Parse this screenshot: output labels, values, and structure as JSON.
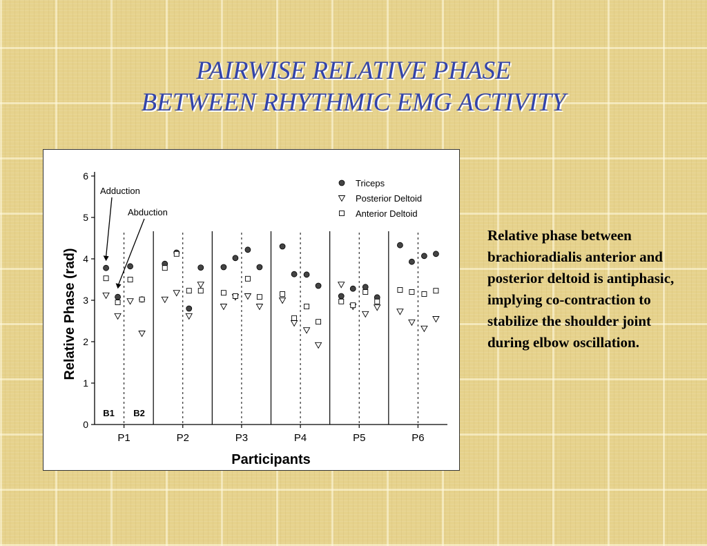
{
  "slide": {
    "title_line1": "PAIRWISE RELATIVE PHASE",
    "title_line2": "BETWEEN RHYTHMIC EMG ACTIVITY",
    "description": "Relative phase between brachioradialis anterior and posterior deltoid is antiphasic, implying co-contraction to stabilize the shoulder joint during elbow oscillation."
  },
  "colors": {
    "title": "#3344aa",
    "triceps_fill": "#444444",
    "background": "#e6d28c"
  },
  "chart_data": {
    "type": "scatter",
    "title": "",
    "xlabel": "Participants",
    "ylabel": "Relative Phase (rad)",
    "ylim": [
      0,
      6
    ],
    "yticks": [
      0,
      1,
      2,
      3,
      4,
      5,
      6
    ],
    "categories": [
      "P1",
      "P2",
      "P3",
      "P4",
      "P5",
      "P6"
    ],
    "subgroups": [
      "B1",
      "B2"
    ],
    "legend_position": "top-right",
    "annotations": [
      "Adduction",
      "Abduction"
    ],
    "series": [
      {
        "name": "Triceps",
        "marker": "filled-circle",
        "points": [
          {
            "participant": "P1",
            "block": 1,
            "values": [
              3.78,
              3.08
            ]
          },
          {
            "participant": "P1",
            "block": 2,
            "values": [
              3.82,
              3.02
            ]
          },
          {
            "participant": "P2",
            "block": 1,
            "values": [
              3.88,
              4.15
            ]
          },
          {
            "participant": "P2",
            "block": 2,
            "values": [
              2.8,
              3.79
            ]
          },
          {
            "participant": "P3",
            "block": 1,
            "values": [
              3.8,
              4.02
            ]
          },
          {
            "participant": "P3",
            "block": 2,
            "values": [
              4.22,
              3.8
            ]
          },
          {
            "participant": "P4",
            "block": 1,
            "values": [
              4.3,
              3.63
            ]
          },
          {
            "participant": "P4",
            "block": 2,
            "values": [
              3.62,
              3.35
            ]
          },
          {
            "participant": "P5",
            "block": 1,
            "values": [
              3.1,
              3.28
            ]
          },
          {
            "participant": "P5",
            "block": 2,
            "values": [
              3.32,
              3.07
            ]
          },
          {
            "participant": "P6",
            "block": 1,
            "values": [
              4.33,
              3.93
            ]
          },
          {
            "participant": "P6",
            "block": 2,
            "values": [
              4.07,
              4.12
            ]
          }
        ]
      },
      {
        "name": "Posterior Deltoid",
        "marker": "open-triangle-down",
        "points": [
          {
            "participant": "P1",
            "block": 1,
            "values": [
              3.12,
              2.62
            ]
          },
          {
            "participant": "P1",
            "block": 2,
            "values": [
              2.98,
              2.2
            ]
          },
          {
            "participant": "P2",
            "block": 1,
            "values": [
              3.02,
              3.18
            ]
          },
          {
            "participant": "P2",
            "block": 2,
            "values": [
              2.62,
              3.38
            ]
          },
          {
            "participant": "P3",
            "block": 1,
            "values": [
              2.85,
              3.08
            ]
          },
          {
            "participant": "P3",
            "block": 2,
            "values": [
              3.1,
              2.85
            ]
          },
          {
            "participant": "P4",
            "block": 1,
            "values": [
              3.0,
              2.45
            ]
          },
          {
            "participant": "P4",
            "block": 2,
            "values": [
              2.28,
              1.92
            ]
          },
          {
            "participant": "P5",
            "block": 1,
            "values": [
              3.38,
              2.85
            ]
          },
          {
            "participant": "P5",
            "block": 2,
            "values": [
              2.67,
              2.83
            ]
          },
          {
            "participant": "P6",
            "block": 1,
            "values": [
              2.73,
              2.47
            ]
          },
          {
            "participant": "P6",
            "block": 2,
            "values": [
              2.32,
              2.55
            ]
          }
        ]
      },
      {
        "name": "Anterior Deltoid",
        "marker": "open-square",
        "points": [
          {
            "participant": "P1",
            "block": 1,
            "values": [
              3.53,
              2.95
            ]
          },
          {
            "participant": "P1",
            "block": 2,
            "values": [
              3.5,
              3.02
            ]
          },
          {
            "participant": "P2",
            "block": 1,
            "values": [
              3.78,
              4.12
            ]
          },
          {
            "participant": "P2",
            "block": 2,
            "values": [
              3.23,
              3.23
            ]
          },
          {
            "participant": "P3",
            "block": 1,
            "values": [
              3.18,
              3.1
            ]
          },
          {
            "participant": "P3",
            "block": 2,
            "values": [
              3.52,
              3.08
            ]
          },
          {
            "participant": "P4",
            "block": 1,
            "values": [
              3.15,
              2.57
            ]
          },
          {
            "participant": "P4",
            "block": 2,
            "values": [
              2.85,
              2.48
            ]
          },
          {
            "participant": "P5",
            "block": 1,
            "values": [
              2.97,
              2.88
            ]
          },
          {
            "participant": "P5",
            "block": 2,
            "values": [
              3.2,
              2.97
            ]
          },
          {
            "participant": "P6",
            "block": 1,
            "values": [
              3.25,
              3.2
            ]
          },
          {
            "participant": "P6",
            "block": 2,
            "values": [
              3.15,
              3.23
            ]
          }
        ]
      }
    ]
  }
}
